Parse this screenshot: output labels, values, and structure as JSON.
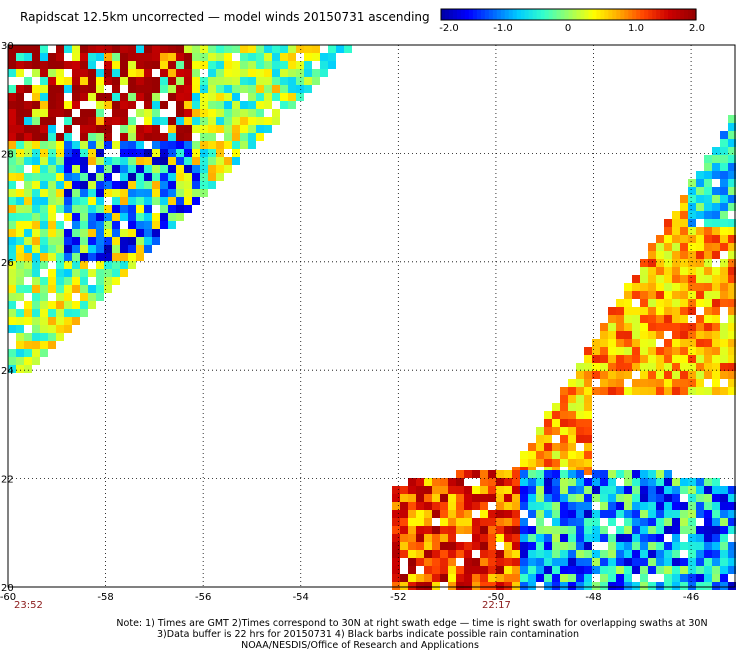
{
  "title": "Rapidscat 12.5km uncorrected — model winds 20150731 ascending",
  "colorbar": {
    "ticks": [
      "-2.0",
      "-1.0",
      "0",
      "1.0",
      "2.0"
    ],
    "range": [
      -2.0,
      2.0
    ],
    "colors": [
      "#0000aa",
      "#0000ff",
      "#0066ff",
      "#00ccff",
      "#33ffcc",
      "#99ff66",
      "#ffff00",
      "#ffaa00",
      "#ff4400",
      "#cc0000",
      "#990000"
    ]
  },
  "axes": {
    "x_ticks": [
      "-60",
      "-58",
      "-56",
      "-54",
      "-52",
      "-50",
      "-48",
      "-46"
    ],
    "y_ticks": [
      "30",
      "28",
      "26",
      "24",
      "22",
      "20"
    ],
    "lon_range": [
      -60,
      -45.1
    ],
    "lat_range": [
      20,
      30
    ]
  },
  "times": {
    "left": "23:52",
    "center": "22:17",
    "color": "#8b1a1a"
  },
  "notes": {
    "line1": "Note: 1) Times are GMT 2)Times correspond to 30N at right swath edge — time is right swath for overlapping swaths at 30N",
    "line2": "3)Data buffer is 22 hrs for 20150731 4) Black barbs indicate possible rain contamination",
    "line3": "NOAA/NESDIS/Office of Research and Applications"
  }
}
